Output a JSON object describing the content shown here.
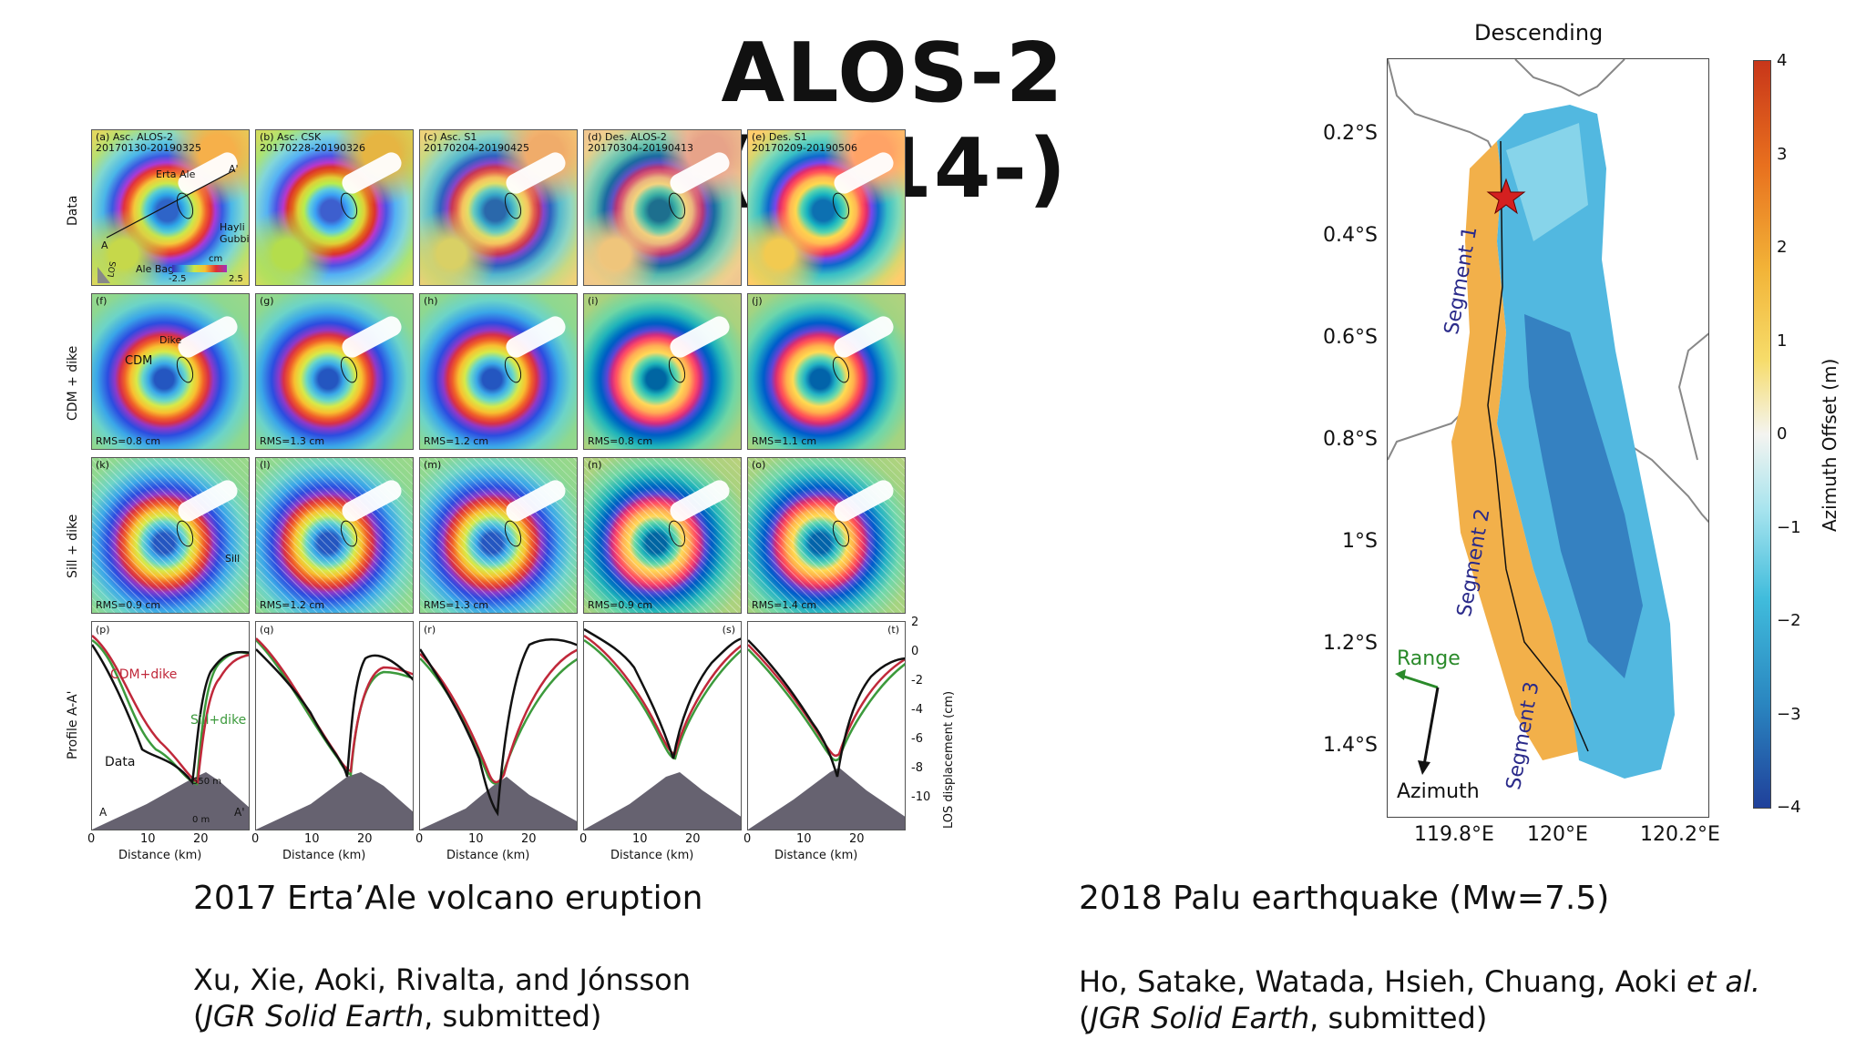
{
  "slide": {
    "title": "ALOS-2 (2014-)"
  },
  "left_figure": {
    "row_labels": [
      "Data",
      "CDM + dike",
      "Sill + dike",
      "Profile A-A'"
    ],
    "data_panels": [
      {
        "label": "(a) Asc. ALOS-2\n20170130-20190325"
      },
      {
        "label": "(b) Asc. CSK\n20170228-20190326"
      },
      {
        "label": "(c) Asc. S1\n20170204-20190425"
      },
      {
        "label": "(d) Des. ALOS-2\n20170304-20190413"
      },
      {
        "label": "(e) Des. S1\n20170209-20190506"
      }
    ],
    "annotations": {
      "erta_ale": "Erta Ale",
      "hayli_gubbi": "Hayli\nGubbi",
      "ale_bagu": "Ale Bagu",
      "a_point": "A",
      "a_prime": "A'",
      "los": "LOS",
      "colorbar_unit": "cm",
      "colorbar_min": "-2.5",
      "colorbar_max": "2.5",
      "cdm": "CDM",
      "sill": "Sill",
      "dike": "Dike"
    },
    "cdm_panels": [
      {
        "label": "(f)",
        "rms": "RMS=0.8 cm"
      },
      {
        "label": "(g)",
        "rms": "RMS=1.3 cm"
      },
      {
        "label": "(h)",
        "rms": "RMS=1.2 cm"
      },
      {
        "label": "(i)",
        "rms": "RMS=0.8 cm"
      },
      {
        "label": "(j)",
        "rms": "RMS=1.1 cm"
      }
    ],
    "sill_panels": [
      {
        "label": "(k)",
        "rms": "RMS=0.9 cm"
      },
      {
        "label": "(l)",
        "rms": "RMS=1.2 cm"
      },
      {
        "label": "(m)",
        "rms": "RMS=1.3 cm"
      },
      {
        "label": "(n)",
        "rms": "RMS=0.9 cm"
      },
      {
        "label": "(o)",
        "rms": "RMS=1.4 cm"
      }
    ],
    "profile_panels": [
      {
        "label": "(p)"
      },
      {
        "label": "(q)"
      },
      {
        "label": "(r)"
      },
      {
        "label": "(s)"
      },
      {
        "label": "(t)"
      }
    ],
    "profile_legend": {
      "cdm": "CDM+dike",
      "sill": "Sill+dike",
      "data": "Data",
      "elev1": "550 m",
      "elev0": "0 m",
      "a": "A",
      "a_prime": "A'"
    },
    "profile_x_ticks": [
      "0",
      "10",
      "20"
    ],
    "profile_xlabel": "Distance (km)",
    "profile_y_ticks": [
      "2",
      "0",
      "-2",
      "-4",
      "-6",
      "-8",
      "-10"
    ],
    "profile_ylabel": "LOS displacement (cm)",
    "colors": {
      "cdm": "#c0283a",
      "sill": "#3c9a3c",
      "data": "#111111"
    }
  },
  "right_figure": {
    "top_label": "Descending",
    "lat_ticks": [
      "0.2°S",
      "0.4°S",
      "0.6°S",
      "0.8°S",
      "1°S",
      "1.2°S",
      "1.4°S"
    ],
    "lon_ticks": [
      "119.8°E",
      "120°E",
      "120.2°E"
    ],
    "segments": [
      "Segment 1",
      "Segment 2",
      "Segment 3"
    ],
    "range_label": "Range",
    "azimuth_label": "Azimuth",
    "colorbar_ticks": [
      "4",
      "3",
      "2",
      "1",
      "0",
      "−1",
      "−2",
      "−3",
      "−4"
    ],
    "colorbar_label": "Azimuth Offset (m)",
    "colors": {
      "range_arrow": "#2a8a2a",
      "segment_text": "#2a2a8a",
      "star": "#d42020"
    }
  },
  "captions": {
    "left_caption": "2017 Erta’Ale volcano eruption",
    "right_caption": "2018 Palu earthquake (Mw=7.5)",
    "left_cite_line1": "Xu, Xie, Aoki, Rivalta, and Jónsson",
    "left_cite_journal": "JGR Solid Earth",
    "left_cite_rest": ", submitted)",
    "right_cite_line1_a": "Ho, Satake, Watada, Hsieh, Chuang, Aoki ",
    "right_cite_line1_b": "et al.",
    "right_cite_journal": "JGR Solid Earth",
    "right_cite_rest": ", submitted)",
    "open_paren": "("
  }
}
